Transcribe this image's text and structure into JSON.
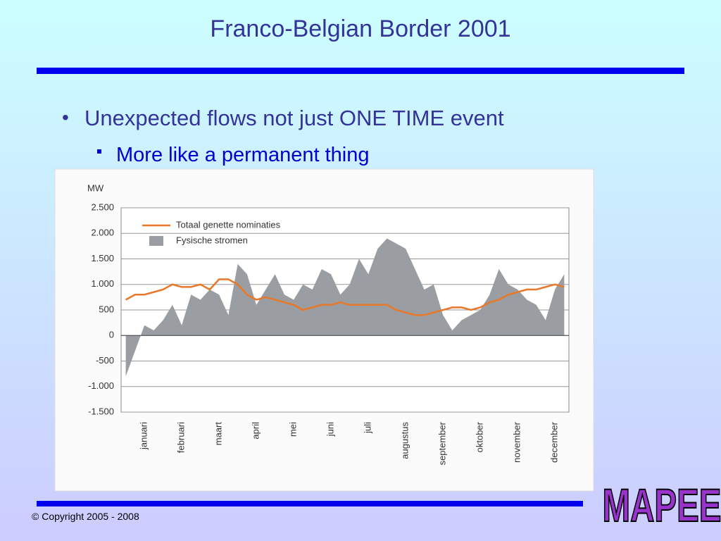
{
  "slide": {
    "title": "Franco-Belgian Border 2001",
    "bullets": [
      "Unexpected flows not just ONE TIME event"
    ],
    "sub_bullets": [
      "More like a permanent thing"
    ],
    "copyright": "© Copyright 2005 - 2008",
    "logo": "MAPEE"
  },
  "chart_data": {
    "type": "line",
    "ylabel": "MW",
    "categories": [
      null,
      null,
      "januari",
      null,
      null,
      null,
      "februari",
      null,
      null,
      null,
      "maart",
      null,
      null,
      null,
      "april",
      null,
      null,
      null,
      "mei",
      null,
      null,
      null,
      "juni",
      null,
      null,
      null,
      "juli",
      null,
      null,
      null,
      "augustus",
      null,
      null,
      null,
      "september",
      null,
      null,
      null,
      "oktober",
      null,
      null,
      null,
      "november",
      null,
      null,
      null,
      "december",
      null
    ],
    "series": [
      {
        "name": "Totaal genette nominaties",
        "style": "line",
        "color": "#e8782a",
        "values": [
          700,
          800,
          800,
          850,
          900,
          1000,
          950,
          950,
          1000,
          900,
          1100,
          1100,
          1000,
          800,
          700,
          750,
          700,
          650,
          600,
          500,
          550,
          600,
          600,
          650,
          600,
          600,
          600,
          600,
          600,
          500,
          450,
          400,
          400,
          450,
          500,
          550,
          550,
          500,
          550,
          650,
          700,
          800,
          850,
          900,
          900,
          950,
          1000,
          950
        ]
      },
      {
        "name": "Fysische stromen",
        "style": "area",
        "color": "#9a9ea3",
        "values": [
          -800,
          -300,
          200,
          100,
          300,
          600,
          200,
          800,
          700,
          900,
          800,
          400,
          1400,
          1200,
          600,
          900,
          1200,
          800,
          700,
          1000,
          900,
          1300,
          1200,
          800,
          1000,
          1500,
          1200,
          1700,
          1900,
          1800,
          1700,
          1300,
          900,
          1000,
          400,
          100,
          300,
          400,
          500,
          800,
          1300,
          1000,
          900,
          700,
          600,
          300,
          900,
          1200
        ]
      }
    ],
    "ylim": [
      -1500,
      2500
    ],
    "yticks": [
      {
        "value": 2500,
        "label": "2.500"
      },
      {
        "value": 2000,
        "label": "2.000"
      },
      {
        "value": 1500,
        "label": "1.500"
      },
      {
        "value": 1000,
        "label": "1.000"
      },
      500,
      0,
      -500,
      {
        "value": -1000,
        "label": "-1.000"
      },
      {
        "value": -1500,
        "label": "-1.500"
      }
    ],
    "grid": true,
    "legend": "top-left"
  }
}
